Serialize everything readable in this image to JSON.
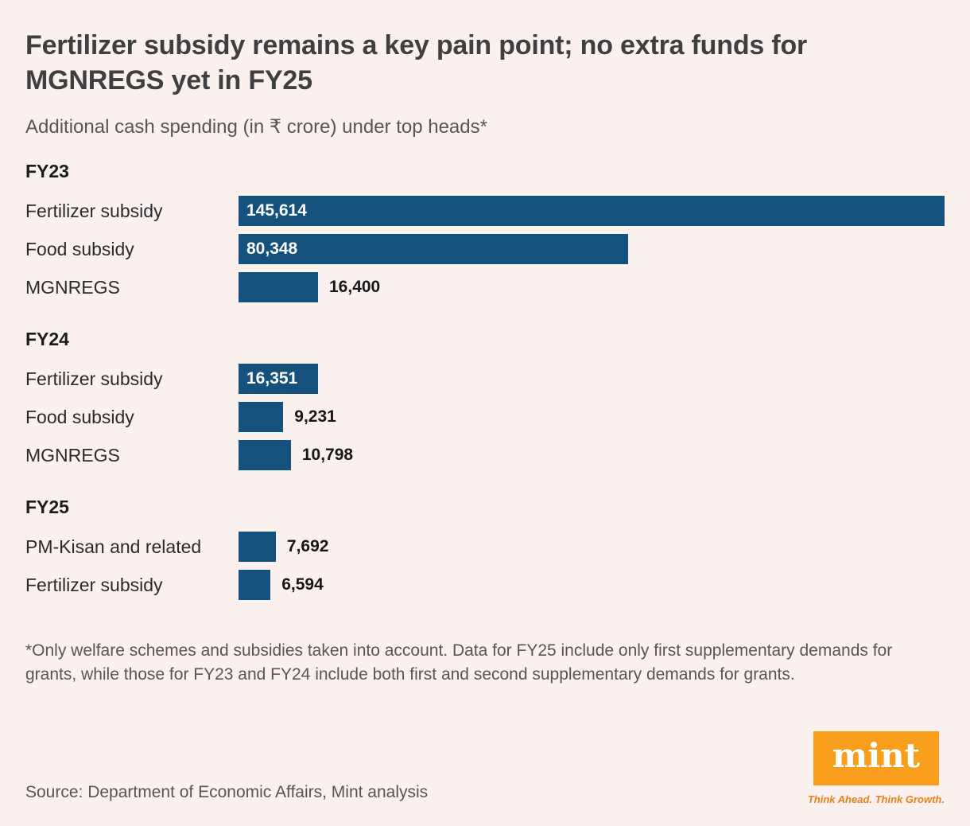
{
  "page": {
    "background": "#faf0ed",
    "title": "Fertilizer subsidy remains a key pain point; no extra funds for MGNREGS yet in FY25",
    "subtitle": "Additional cash spending (in ₹ crore) under top heads*",
    "footnote": "*Only welfare schemes and subsidies taken into account. Data for FY25 include only first supplementary demands for grants, while those for FY23 and FY24 include both first and second supplementary demands for grants.",
    "source": "Source: Department of Economic Affairs, Mint analysis"
  },
  "brand": {
    "logo_text": "mint",
    "tagline": "Think Ahead. Think Growth.",
    "logo_bg": "#f99d1c",
    "logo_text_color": "#ffffff",
    "tagline_color": "#e8821c"
  },
  "chart_data": {
    "type": "bar",
    "orientation": "horizontal",
    "title": "Fertilizer subsidy remains a key pain point; no extra funds for MGNREGS yet in FY25",
    "subtitle": "Additional cash spending (in ₹ crore) under top heads*",
    "unit": "₹ crore",
    "bar_color": "#14527d",
    "value_inside_color": "#ffffff",
    "value_outside_color": "#171719",
    "xlim": [
      0,
      145614
    ],
    "max_value": 145614,
    "grid": false,
    "legend": false,
    "groups": [
      {
        "label": "FY23",
        "rows": [
          {
            "label": "Fertilizer subsidy",
            "value": 145614,
            "display": "145,614",
            "label_position": "inside"
          },
          {
            "label": "Food subsidy",
            "value": 80348,
            "display": "80,348",
            "label_position": "inside"
          },
          {
            "label": "MGNREGS",
            "value": 16400,
            "display": "16,400",
            "label_position": "outside"
          }
        ]
      },
      {
        "label": "FY24",
        "rows": [
          {
            "label": "Fertilizer subsidy",
            "value": 16351,
            "display": "16,351",
            "label_position": "inside"
          },
          {
            "label": "Food subsidy",
            "value": 9231,
            "display": "9,231",
            "label_position": "outside"
          },
          {
            "label": "MGNREGS",
            "value": 10798,
            "display": "10,798",
            "label_position": "outside"
          }
        ]
      },
      {
        "label": "FY25",
        "rows": [
          {
            "label": "PM-Kisan and related",
            "value": 7692,
            "display": "7,692",
            "label_position": "outside"
          },
          {
            "label": "Fertilizer subsidy",
            "value": 6594,
            "display": "6,594",
            "label_position": "outside"
          }
        ]
      }
    ]
  }
}
